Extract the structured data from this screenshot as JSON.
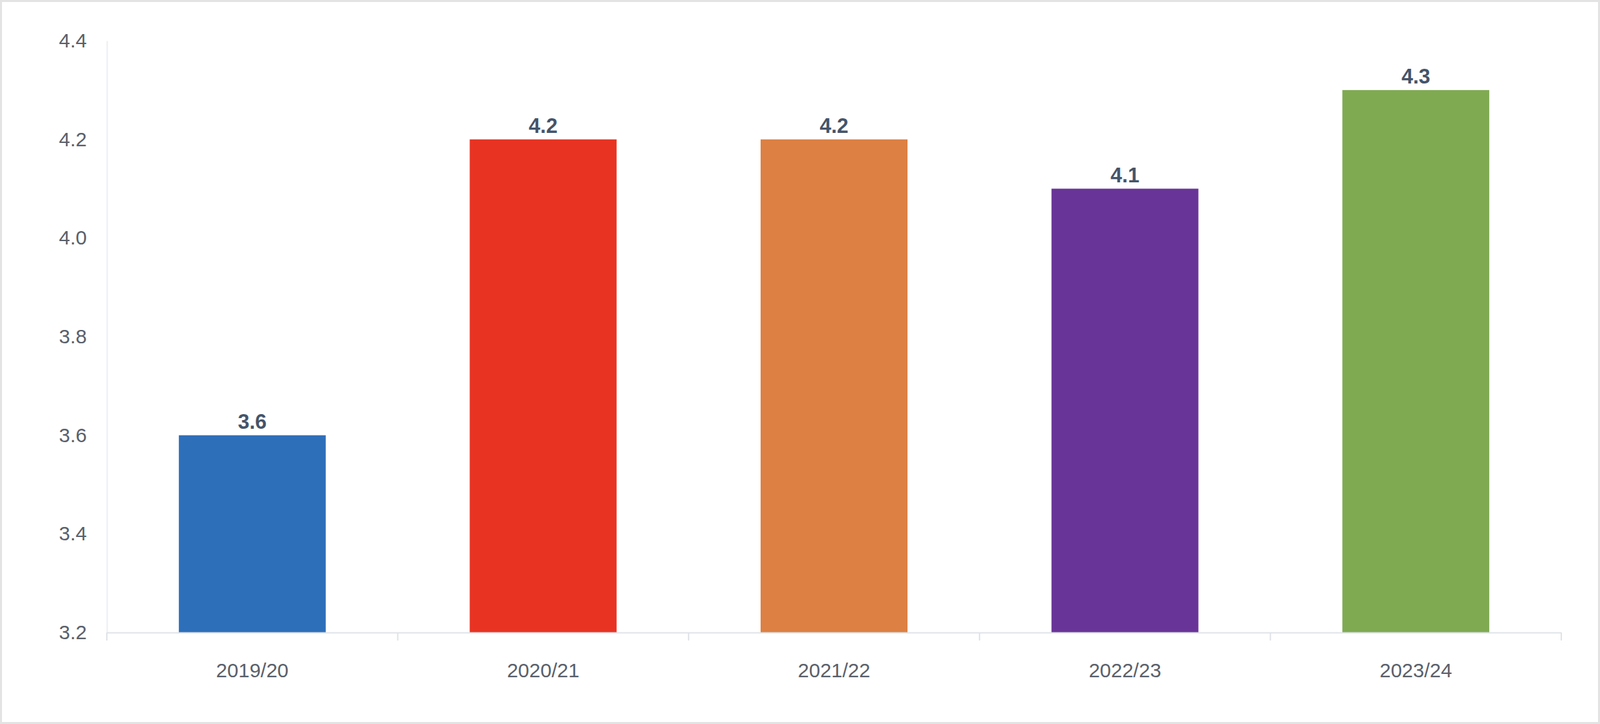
{
  "chart_data": {
    "type": "bar",
    "categories": [
      "2019/20",
      "2020/21",
      "2021/22",
      "2022/23",
      "2023/24"
    ],
    "values": [
      3.6,
      4.2,
      4.2,
      4.1,
      4.3
    ],
    "colors": [
      "#2e6fba",
      "#e83323",
      "#dd8043",
      "#693498",
      "#7faa52"
    ],
    "ylim": [
      3.2,
      4.4
    ],
    "yticks": [
      3.2,
      3.4,
      3.6,
      3.8,
      {
        "value": 4,
        "label": "4.0"
      },
      4.2,
      4.4
    ],
    "grid": false,
    "data_labels": true
  }
}
